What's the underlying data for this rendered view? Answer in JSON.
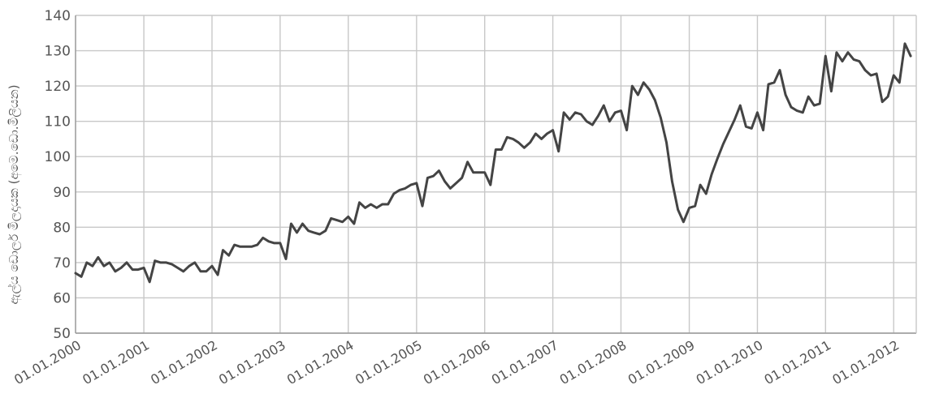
{
  "chart_data": {
    "type": "line",
    "ylabel": "ඇල්ය ඩොලර් මිලදායක (අමෙ.ඩො.මිලියන)",
    "xlabel": "",
    "ylim": [
      50,
      140
    ],
    "yticks": [
      "50",
      "60",
      "70",
      "80",
      "90",
      "100",
      "110",
      "120",
      "130",
      "140"
    ],
    "xlim": [
      "01.01.2000",
      "01.05.2012"
    ],
    "xtick_labels": [
      "01.01.2000",
      "01.01.2001",
      "01.01.2002",
      "01.01.2003",
      "01.01.2004",
      "01.01.2005",
      "01.01.2006",
      "01.01.2007",
      "01.01.2008",
      "01.01.2009",
      "01.01.2010",
      "01.01.2011",
      "01.01.2012"
    ],
    "grid": true,
    "colors": {
      "series": "#444444",
      "grid": "#c8c8c8",
      "text": "#555555"
    },
    "series": [
      {
        "x": [
          "01.01.2000",
          "01.02.2000",
          "01.03.2000",
          "01.04.2000",
          "01.05.2000",
          "01.06.2000",
          "01.07.2000",
          "01.08.2000",
          "01.09.2000",
          "01.10.2000",
          "01.11.2000",
          "01.12.2000",
          "01.01.2001",
          "01.02.2001",
          "01.03.2001",
          "01.04.2001",
          "01.05.2001",
          "01.06.2001",
          "01.07.2001",
          "01.08.2001",
          "01.09.2001",
          "01.10.2001",
          "01.11.2001",
          "01.12.2001",
          "01.01.2002",
          "01.02.2002",
          "01.03.2002",
          "01.04.2002",
          "01.05.2002",
          "01.06.2002",
          "01.07.2002",
          "01.08.2002",
          "01.09.2002",
          "01.10.2002",
          "01.11.2002",
          "01.12.2002",
          "01.01.2003",
          "01.02.2003",
          "01.03.2003",
          "01.04.2003",
          "01.05.2003",
          "01.06.2003",
          "01.07.2003",
          "01.08.2003",
          "01.09.2003",
          "01.10.2003",
          "01.11.2003",
          "01.12.2003",
          "01.01.2004",
          "01.02.2004",
          "01.03.2004",
          "01.04.2004",
          "01.05.2004",
          "01.06.2004",
          "01.07.2004",
          "01.08.2004",
          "01.09.2004",
          "01.10.2004",
          "01.11.2004",
          "01.12.2004",
          "01.01.2005",
          "01.02.2005",
          "01.03.2005",
          "01.04.2005",
          "01.05.2005",
          "01.06.2005",
          "01.07.2005",
          "01.08.2005",
          "01.09.2005",
          "01.10.2005",
          "01.11.2005",
          "01.12.2005",
          "01.01.2006",
          "01.02.2006",
          "01.03.2006",
          "01.04.2006",
          "01.05.2006",
          "01.06.2006",
          "01.07.2006",
          "01.08.2006",
          "01.09.2006",
          "01.10.2006",
          "01.11.2006",
          "01.12.2006",
          "01.01.2007",
          "01.02.2007",
          "01.03.2007",
          "01.04.2007",
          "01.05.2007",
          "01.06.2007",
          "01.07.2007",
          "01.08.2007",
          "01.09.2007",
          "01.10.2007",
          "01.11.2007",
          "01.12.2007",
          "01.01.2008",
          "01.02.2008",
          "01.03.2008",
          "01.04.2008",
          "01.05.2008",
          "01.06.2008",
          "01.07.2008",
          "01.08.2008",
          "01.09.2008",
          "01.10.2008",
          "01.11.2008",
          "01.12.2008",
          "01.01.2009",
          "01.02.2009",
          "01.03.2009",
          "01.04.2009",
          "01.05.2009",
          "01.06.2009",
          "01.07.2009",
          "01.08.2009",
          "01.09.2009",
          "01.10.2009",
          "01.11.2009",
          "01.12.2009",
          "01.01.2010",
          "01.02.2010",
          "01.03.2010",
          "01.04.2010",
          "01.05.2010",
          "01.06.2010",
          "01.07.2010",
          "01.08.2010",
          "01.09.2010",
          "01.10.2010",
          "01.11.2010",
          "01.12.2010",
          "01.01.2011",
          "01.02.2011",
          "01.03.2011",
          "01.04.2011",
          "01.05.2011",
          "01.06.2011",
          "01.07.2011",
          "01.08.2011",
          "01.09.2011",
          "01.10.2011",
          "01.11.2011",
          "01.12.2011",
          "01.01.2012",
          "01.02.2012",
          "01.03.2012",
          "01.04.2012"
        ],
        "values": [
          67,
          66,
          70,
          69,
          71.5,
          69,
          70,
          67.5,
          68.5,
          70,
          68,
          68,
          68.5,
          64.5,
          70.5,
          70,
          70,
          69.5,
          68.5,
          67.5,
          69,
          70,
          67.5,
          67.5,
          69,
          66.5,
          73.5,
          72,
          75,
          74.5,
          74.5,
          74.5,
          75,
          77,
          76,
          75.5,
          75.5,
          71,
          81,
          78.5,
          81,
          79,
          78.5,
          78,
          79,
          82.5,
          82,
          81.5,
          83,
          81,
          87,
          85.5,
          86.5,
          85.5,
          86.5,
          86.5,
          89.5,
          90.5,
          91,
          92,
          92.5,
          86,
          94,
          94.5,
          96,
          93,
          91,
          92.5,
          94,
          98.5,
          95.5,
          95.5,
          95.5,
          92,
          102,
          102,
          105.5,
          105,
          104,
          102.5,
          104,
          106.5,
          105,
          106.5,
          107.5,
          101.5,
          112.5,
          110.5,
          112.5,
          112,
          110,
          109,
          111.5,
          114.5,
          110,
          112.5,
          113,
          107.5,
          120,
          117.5,
          121,
          119,
          116,
          111,
          104,
          93,
          85,
          81.5,
          85.5,
          86,
          92,
          89.5,
          95,
          99.5,
          103.5,
          107,
          110.5,
          114.5,
          108.5,
          108,
          112.5,
          107.5,
          120.5,
          121,
          124.5,
          117.5,
          114,
          113,
          112.5,
          117,
          114.5,
          115,
          128.5,
          118.5,
          129.5,
          127,
          129.5,
          127.5,
          127,
          124.5,
          123,
          123.5,
          115.5,
          117,
          123,
          121,
          132,
          128.5
        ]
      }
    ]
  }
}
